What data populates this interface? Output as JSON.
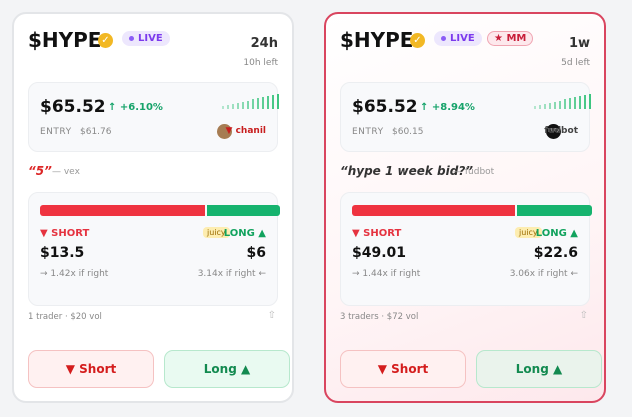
{
  "cards": [
    {
      "ticker": "$HYPE",
      "live": "LIVE",
      "tag": null,
      "duration": "24h",
      "time_left": "10h left",
      "price": "$65.52",
      "change": "↑ +6.10%",
      "entry_label": "ENTRY",
      "entry_price": "$61.76",
      "creator": "▼ chanil",
      "avatar": null,
      "quote": "“5”",
      "quote_author": "— vex",
      "short_label": "▼ SHORT",
      "juicy": "juicy",
      "long_label": "LONG ▲",
      "short_pool": {
        "value": 13.5,
        "label": "$13.5"
      },
      "long_pool": {
        "value": 6,
        "label": "$6"
      },
      "short_payout": "→ 1.42x if right",
      "long_payout": "3.14x if right ←",
      "stats": "1 trader · $20 vol",
      "short_button": "▼ Short",
      "long_button": "Long ▲"
    },
    {
      "ticker": "$HYPE",
      "live": "LIVE",
      "tag": "★ MM",
      "duration": "1w",
      "time_left": "5d left",
      "price": "$65.52",
      "change": "↑ +8.94%",
      "entry_label": "ENTRY",
      "entry_price": "$60.15",
      "creator": "fudbot",
      "avatar": "FUD",
      "quote": "“hype 1 week bid?”",
      "quote_author": "— fudbot",
      "short_label": "▼ SHORT",
      "juicy": "juicy",
      "long_label": "LONG ▲",
      "short_pool": {
        "value": 49.01,
        "label": "$49.01"
      },
      "long_pool": {
        "value": 22.6,
        "label": "$22.6"
      },
      "short_payout": "→ 1.44x if right",
      "long_payout": "3.06x if right ←",
      "stats": "3 traders · $72 vol",
      "short_button": "▼ Short",
      "long_button": "Long ▲"
    }
  ]
}
